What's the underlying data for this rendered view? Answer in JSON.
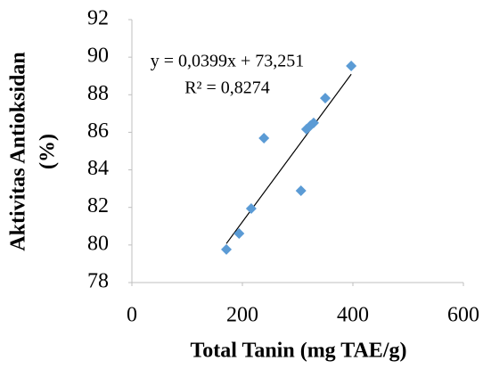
{
  "chart_data": {
    "type": "scatter",
    "xlabel": "Total Tanin (mg TAE/g)",
    "ylabel": [
      "Aktivitas Antioksidan",
      "(%)"
    ],
    "x": [
      171,
      194,
      216,
      239,
      306,
      316,
      323,
      329,
      350,
      397
    ],
    "series": [
      {
        "color": "#5b9bd5",
        "values": [
          79.76,
          80.61,
          81.94,
          85.69,
          82.89,
          86.16,
          86.35,
          86.5,
          87.82,
          89.53
        ]
      }
    ],
    "xlim": [
      0,
      600
    ],
    "xticks": [
      0,
      200,
      400,
      600
    ],
    "ylim": [
      78,
      92
    ],
    "yticks": [
      78,
      80,
      82,
      84,
      86,
      88,
      90,
      92
    ],
    "grid": false,
    "trendline": {
      "slope": 0.0399,
      "intercept": 73.251,
      "color": "#000000",
      "equation": "y = 0,0399x + 73,251",
      "r2": "R² = 0,8274"
    }
  }
}
